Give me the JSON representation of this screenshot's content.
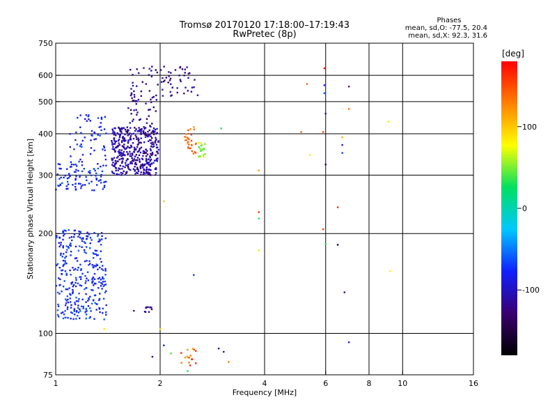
{
  "header": {
    "title": "Tromsø 20170120 17:18:00–17:19:43",
    "subtitle": "RwPretec (8p)",
    "phases_title": "Phases",
    "phases_o": "mean, sd,O: -77.5, 20.4",
    "phases_x": "mean, sd,X:  92.3, 31.6"
  },
  "colorbar": {
    "unit": "[deg]",
    "ticks": [
      {
        "label": "100",
        "value": 100
      },
      {
        "label": "0",
        "value": 0
      },
      {
        "label": "-100",
        "value": -100
      }
    ],
    "range": [
      -180,
      180
    ],
    "stops": [
      "#000000",
      "#3a0070",
      "#1020ff",
      "#00c8ff",
      "#00e060",
      "#ffff00",
      "#ff8000",
      "#ff0000"
    ]
  },
  "chart_data": {
    "type": "scatter",
    "xlabel": "Frequency [MHz]",
    "ylabel": "Stationary phase Virtual Height [km]",
    "xscale": "log",
    "yscale": "log",
    "xlim": [
      1,
      16
    ],
    "ylim": [
      75,
      750
    ],
    "grid": true,
    "x_ticks": [
      {
        "label": "1",
        "value": 1
      },
      {
        "label": "2",
        "value": 2
      },
      {
        "label": "4",
        "value": 4
      },
      {
        "label": "6",
        "value": 6
      },
      {
        "label": "8",
        "value": 8
      },
      {
        "label": "10",
        "value": 10
      },
      {
        "label": "16",
        "value": 16
      }
    ],
    "y_ticks": [
      {
        "label": "75",
        "value": 75
      },
      {
        "label": "100",
        "value": 100
      },
      {
        "label": "200",
        "value": 200
      },
      {
        "label": "300",
        "value": 300
      },
      {
        "label": "400",
        "value": 400
      },
      {
        "label": "500",
        "value": 500
      },
      {
        "label": "600",
        "value": 600
      },
      {
        "label": "750",
        "value": 750
      }
    ],
    "gridlines_x": [
      2,
      4,
      6,
      8,
      10
    ],
    "gridlines_y": [
      100,
      200,
      300,
      400,
      500,
      600
    ],
    "clusters": [
      {
        "x": [
          1.0,
          1.4
        ],
        "y": [
          110,
          205
        ],
        "phase": [
          -95,
          -55
        ],
        "n": 320
      },
      {
        "x": [
          1.0,
          1.4
        ],
        "y": [
          270,
          330
        ],
        "phase": [
          -90,
          -60
        ],
        "n": 90
      },
      {
        "x": [
          1.1,
          1.4
        ],
        "y": [
          320,
          460
        ],
        "phase": [
          -95,
          -65
        ],
        "n": 60
      },
      {
        "x": [
          1.45,
          1.98
        ],
        "y": [
          300,
          420
        ],
        "phase": [
          -135,
          -85
        ],
        "n": 420
      },
      {
        "x": [
          1.6,
          1.98
        ],
        "y": [
          400,
          640
        ],
        "phase": [
          -140,
          -95
        ],
        "n": 70
      },
      {
        "x": [
          2.0,
          2.6
        ],
        "y": [
          520,
          640
        ],
        "phase": [
          -135,
          -95
        ],
        "n": 45
      },
      {
        "x": [
          2.35,
          2.55
        ],
        "y": [
          340,
          420
        ],
        "phase": [
          120,
          160
        ],
        "n": 28
      },
      {
        "x": [
          2.58,
          2.7
        ],
        "y": [
          340,
          380
        ],
        "phase": [
          40,
          70
        ],
        "n": 22
      },
      {
        "x": [
          1.8,
          1.9
        ],
        "y": [
          116,
          120
        ],
        "phase": [
          -130,
          -110
        ],
        "n": 10
      },
      {
        "x": [
          2.3,
          2.6
        ],
        "y": [
          80,
          90
        ],
        "phase": [
          110,
          170
        ],
        "n": 16
      }
    ],
    "points": [
      {
        "x": 5.95,
        "y": 630,
        "phase": 170
      },
      {
        "x": 5.3,
        "y": 565,
        "phase": 140
      },
      {
        "x": 5.95,
        "y": 560,
        "phase": -80
      },
      {
        "x": 7.0,
        "y": 555,
        "phase": -130
      },
      {
        "x": 5.95,
        "y": 530,
        "phase": -60
      },
      {
        "x": 7.0,
        "y": 475,
        "phase": 140
      },
      {
        "x": 6.0,
        "y": 460,
        "phase": -110
      },
      {
        "x": 9.1,
        "y": 435,
        "phase": 70
      },
      {
        "x": 5.1,
        "y": 405,
        "phase": 140
      },
      {
        "x": 5.9,
        "y": 405,
        "phase": 150
      },
      {
        "x": 6.7,
        "y": 390,
        "phase": 110
      },
      {
        "x": 6.7,
        "y": 370,
        "phase": -100
      },
      {
        "x": 6.7,
        "y": 350,
        "phase": -70
      },
      {
        "x": 5.4,
        "y": 345,
        "phase": 80
      },
      {
        "x": 6.0,
        "y": 323,
        "phase": -130
      },
      {
        "x": 3.0,
        "y": 415,
        "phase": 30
      },
      {
        "x": 3.85,
        "y": 310,
        "phase": 120
      },
      {
        "x": 2.05,
        "y": 250,
        "phase": 100
      },
      {
        "x": 3.85,
        "y": 232,
        "phase": 160
      },
      {
        "x": 3.85,
        "y": 222,
        "phase": 30
      },
      {
        "x": 6.5,
        "y": 240,
        "phase": 170
      },
      {
        "x": 5.9,
        "y": 206,
        "phase": 160
      },
      {
        "x": 6.0,
        "y": 186,
        "phase": 30
      },
      {
        "x": 6.5,
        "y": 185,
        "phase": -150
      },
      {
        "x": 3.85,
        "y": 178,
        "phase": 90
      },
      {
        "x": 9.2,
        "y": 154,
        "phase": 80
      },
      {
        "x": 2.5,
        "y": 150,
        "phase": -70
      },
      {
        "x": 6.8,
        "y": 133,
        "phase": -115
      },
      {
        "x": 1.68,
        "y": 117,
        "phase": -100
      },
      {
        "x": 1.38,
        "y": 103,
        "phase": 90
      },
      {
        "x": 2.0,
        "y": 103,
        "phase": 90
      },
      {
        "x": 7.0,
        "y": 94,
        "phase": -90
      },
      {
        "x": 2.05,
        "y": 92,
        "phase": -80
      },
      {
        "x": 1.9,
        "y": 85,
        "phase": -120
      },
      {
        "x": 2.95,
        "y": 90,
        "phase": -120
      },
      {
        "x": 3.05,
        "y": 88,
        "phase": -110
      },
      {
        "x": 3.15,
        "y": 82,
        "phase": 130
      },
      {
        "x": 2.15,
        "y": 87,
        "phase": 40
      },
      {
        "x": 2.4,
        "y": 77,
        "phase": 30
      }
    ]
  }
}
